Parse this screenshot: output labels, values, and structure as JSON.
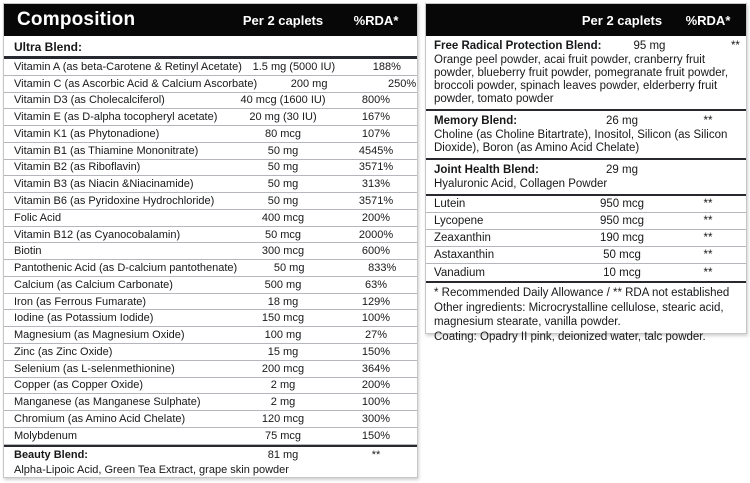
{
  "left_panel": {
    "header": {
      "title": "Composition",
      "col_amount": "Per 2 caplets",
      "col_rda": "%RDA*"
    },
    "section_label": "Ultra Blend:",
    "rows": [
      {
        "name": "Vitamin A (as beta-Carotene & Retinyl Acetate)",
        "amount": "1.5 mg (5000 IU)",
        "rda": "188%"
      },
      {
        "name": "Vitamin C (as Ascorbic Acid & Calcium Ascorbate)",
        "amount": "200 mg",
        "rda": "250%"
      },
      {
        "name": "Vitamin D3 (as Cholecalciferol)",
        "amount": "40 mcg (1600 IU)",
        "rda": "800%"
      },
      {
        "name": "Vitamin E (as D-alpha tocopheryl acetate)",
        "amount": "20 mg (30 IU)",
        "rda": "167%"
      },
      {
        "name": "Vitamin K1 (as Phytonadione)",
        "amount": "80 mcg",
        "rda": "107%"
      },
      {
        "name": "Vitamin B1 (as Thiamine Mononitrate)",
        "amount": "50 mg",
        "rda": "4545%"
      },
      {
        "name": "Vitamin B2 (as Riboflavin)",
        "amount": "50 mg",
        "rda": "3571%"
      },
      {
        "name": "Vitamin B3 (as Niacin &Niacinamide)",
        "amount": "50 mg",
        "rda": "313%"
      },
      {
        "name": "Vitamin B6 (as Pyridoxine Hydrochloride)",
        "amount": "50 mg",
        "rda": "3571%"
      },
      {
        "name": "Folic Acid",
        "amount": "400 mcg",
        "rda": "200%"
      },
      {
        "name": "Vitamin B12 (as Cyanocobalamin)",
        "amount": "50 mcg",
        "rda": "2000%"
      },
      {
        "name": "Biotin",
        "amount": "300 mcg",
        "rda": "600%"
      },
      {
        "name": "Pantothenic Acid (as D-calcium pantothenate)",
        "amount": "50 mg",
        "rda": "833%"
      },
      {
        "name": "Calcium (as Calcium Carbonate)",
        "amount": "500 mg",
        "rda": "63%"
      },
      {
        "name": "Iron (as Ferrous Fumarate)",
        "amount": "18 mg",
        "rda": "129%"
      },
      {
        "name": "Iodine (as Potassium Iodide)",
        "amount": "150 mcg",
        "rda": "100%"
      },
      {
        "name": "Magnesium (as Magnesium Oxide)",
        "amount": "100 mg",
        "rda": "27%"
      },
      {
        "name": "Zinc (as Zinc Oxide)",
        "amount": "15 mg",
        "rda": "150%"
      },
      {
        "name": "Selenium (as L-selenmethionine)",
        "amount": "200 mcg",
        "rda": "364%"
      },
      {
        "name": "Copper (as Copper Oxide)",
        "amount": "2 mg",
        "rda": "200%"
      },
      {
        "name": "Manganese (as Manganese Sulphate)",
        "amount": "2 mg",
        "rda": "100%"
      },
      {
        "name": "Chromium (as Amino Acid Chelate)",
        "amount": "120 mcg",
        "rda": "300%"
      },
      {
        "name": "Molybdenum",
        "amount": "75 mcg",
        "rda": "150%"
      }
    ],
    "beauty_blend": {
      "name": "Beauty Blend:",
      "amount": "81 mg",
      "rda": "**",
      "description": "Alpha-Lipoic Acid, Green Tea Extract, grape skin powder"
    }
  },
  "right_panel": {
    "header": {
      "col_amount": "Per 2 caplets",
      "col_rda": "%RDA*"
    },
    "blends": [
      {
        "name": "Free Radical Protection Blend:",
        "amount": "95 mg",
        "rda": "**",
        "description": "Orange peel powder, acai fruit powder, cranberry fruit powder, blueberry fruit powder, pomegranate fruit powder, broccoli powder, spinach leaves powder, elderberry fruit powder, tomato powder"
      },
      {
        "name": "Memory Blend:",
        "amount": "26 mg",
        "rda": "**",
        "description": "Choline (as Choline Bitartrate), Inositol, Silicon (as Silicon Dioxide), Boron (as Amino Acid Chelate)"
      },
      {
        "name": "Joint Health Blend:",
        "amount": "29 mg",
        "rda": "",
        "description": "Hyaluronic Acid, Collagen Powder"
      }
    ],
    "rows": [
      {
        "name": "Lutein",
        "amount": "950 mcg",
        "rda": "**"
      },
      {
        "name": "Lycopene",
        "amount": "950 mcg",
        "rda": "**"
      },
      {
        "name": "Zeaxanthin",
        "amount": "190 mcg",
        "rda": "**"
      },
      {
        "name": "Astaxanthin",
        "amount": "50 mcg",
        "rda": "**"
      },
      {
        "name": "Vanadium",
        "amount": "10 mcg",
        "rda": "**"
      }
    ],
    "footnotes": [
      "* Recommended Daily Allowance / ** RDA not established",
      "Other ingredients: Microcrystalline cellulose, stearic acid, magnesium stearate, vanilla powder.",
      "Coating: Opadry II pink, deionized water, talc powder."
    ]
  },
  "colors": {
    "header_bg": "#070707",
    "header_text": "#ffffff",
    "row_divider": "#b3b6ba",
    "section_divider": "#27292f"
  }
}
